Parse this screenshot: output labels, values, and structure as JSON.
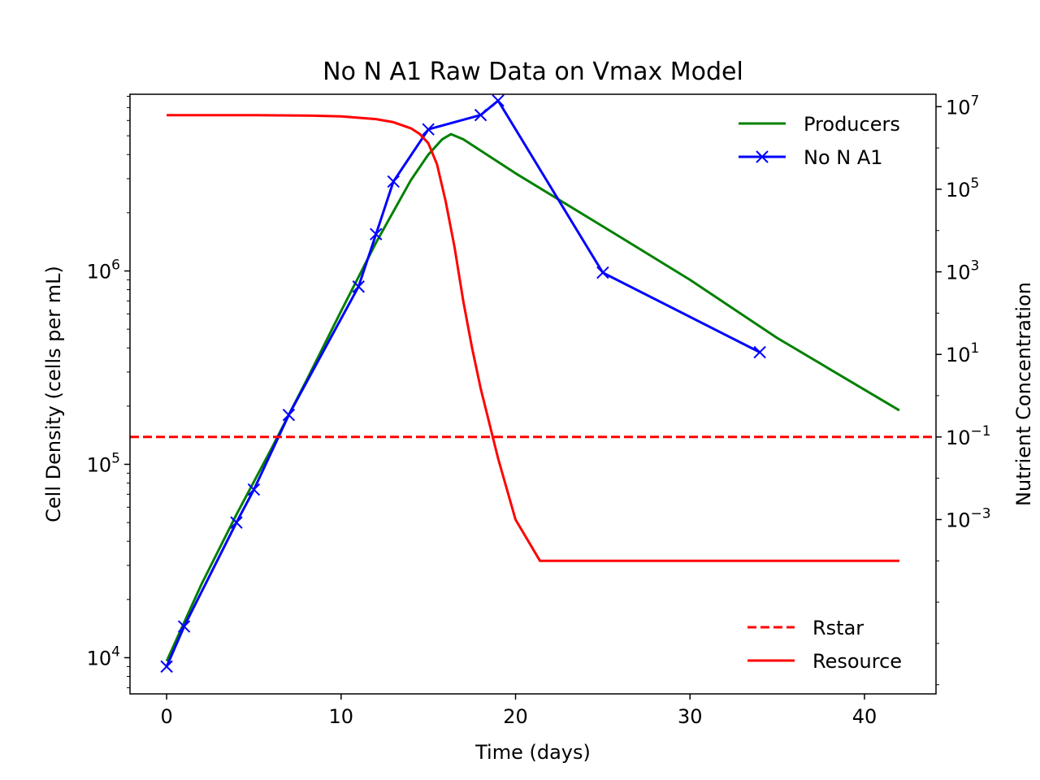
{
  "chart_data": {
    "type": "line",
    "title": "No N A1 Raw Data on Vmax Model",
    "xlabel": "Time (days)",
    "ylabel": "Cell Density (cells per mL)",
    "ylabel_right": "Nutrient Concentration",
    "xlim": [
      -2.1,
      44.1
    ],
    "xticks": [
      0,
      10,
      20,
      30,
      40
    ],
    "ylim": [
      6500,
      8200000
    ],
    "yscale": "log",
    "yticks": [
      {
        "base": "10",
        "exp": "4",
        "value": 10000
      },
      {
        "base": "10",
        "exp": "5",
        "value": 100000
      },
      {
        "base": "10",
        "exp": "6",
        "value": 1000000
      }
    ],
    "ylim_right": [
      6e-08,
      20000000
    ],
    "yscale_right": "log",
    "yticks_right": [
      {
        "base": "10",
        "exp": "−3",
        "value": 0.001
      },
      {
        "base": "10",
        "exp": "−1",
        "value": 0.1
      },
      {
        "base": "10",
        "exp": "1",
        "value": 10
      },
      {
        "base": "10",
        "exp": "3",
        "value": 1000
      },
      {
        "base": "10",
        "exp": "5",
        "value": 100000
      },
      {
        "base": "10",
        "exp": "7",
        "value": 10000000
      }
    ],
    "grid": false,
    "series": [
      {
        "name": "Producers",
        "axis": "left",
        "color": "#008000",
        "style": "solid",
        "marker": "none",
        "x": [
          0,
          2,
          4,
          6,
          8,
          10,
          12,
          14,
          15,
          15.8,
          16.3,
          17,
          20,
          25,
          30,
          35,
          42
        ],
        "y": [
          9600,
          24000,
          55000,
          120000,
          270000,
          620000,
          1400000,
          2950000,
          4000000,
          4800000,
          5100000,
          4800000,
          3200000,
          1700000,
          900000,
          450000,
          190000
        ]
      },
      {
        "name": "No N A1",
        "axis": "left",
        "color": "#0000ff",
        "style": "solid",
        "marker": "x",
        "x": [
          0,
          1,
          4,
          5,
          7,
          11,
          12,
          13,
          15,
          18,
          19,
          25,
          34
        ],
        "y": [
          9000,
          14500,
          50000,
          74000,
          180000,
          830000,
          1550000,
          2900000,
          5400000,
          6400000,
          7600000,
          980000,
          380000
        ]
      },
      {
        "name": "Resource",
        "axis": "right",
        "color": "#ff0000",
        "style": "solid",
        "marker": "none",
        "x": [
          0,
          5,
          8,
          10,
          12,
          13,
          14,
          14.5,
          15,
          15.5,
          16,
          16.5,
          17,
          17.5,
          18,
          19,
          20,
          21.4,
          42
        ],
        "y": [
          6200000,
          6200000,
          6100000,
          5800000,
          5000000,
          4200000,
          3000000,
          2200000,
          1300000,
          400000,
          50000,
          4000,
          200,
          15,
          1.5,
          0.03,
          0.001,
          0.0001,
          0.0001
        ]
      },
      {
        "name": "Rstar",
        "axis": "right",
        "color": "#ff0000",
        "style": "dashed",
        "marker": "none",
        "x": [
          -2.1,
          44.1
        ],
        "y": [
          0.1,
          0.1
        ]
      }
    ],
    "legends": [
      {
        "placement": "upper-right",
        "entries": [
          "Producers",
          "No N A1"
        ]
      },
      {
        "placement": "lower-right",
        "entries": [
          "Rstar",
          "Resource"
        ]
      }
    ]
  }
}
